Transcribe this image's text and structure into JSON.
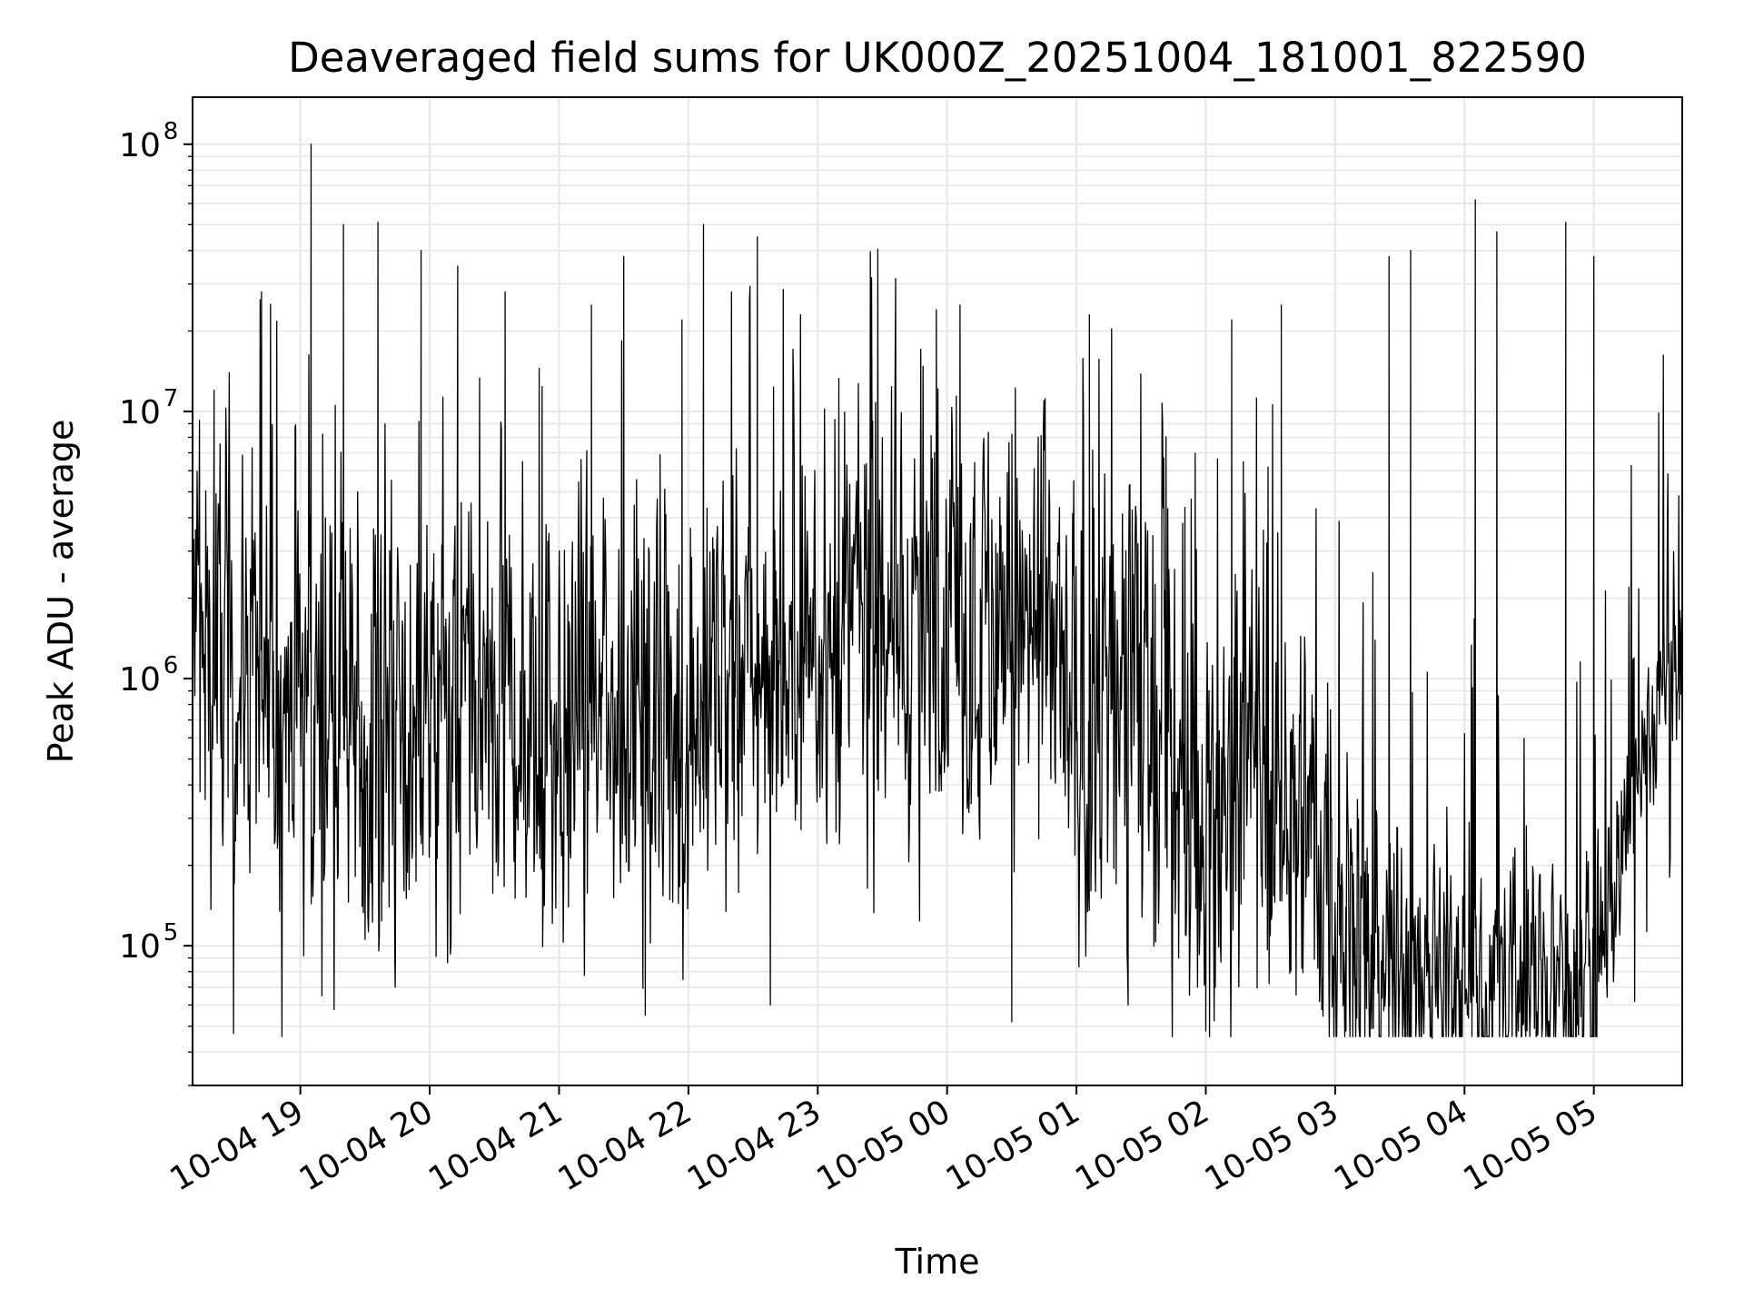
{
  "chart_data": {
    "type": "line",
    "title": "Deaveraged field sums for UK000Z_20251004_181001_822590",
    "xlabel": "Time",
    "ylabel": "Peak ADU - average",
    "y_scale": "log",
    "ylim": [
      30000,
      150000000
    ],
    "xlim": [
      "2025-10-04 18:10",
      "2025-10-05 05:41"
    ],
    "grid": "on (major and minor, light gray)",
    "x_ticks": [
      {
        "label": "10-04 19",
        "value": "2025-10-04 19:00"
      },
      {
        "label": "10-04 20",
        "value": "2025-10-04 20:00"
      },
      {
        "label": "10-04 21",
        "value": "2025-10-04 21:00"
      },
      {
        "label": "10-04 22",
        "value": "2025-10-04 22:00"
      },
      {
        "label": "10-04 23",
        "value": "2025-10-04 23:00"
      },
      {
        "label": "10-05 00",
        "value": "2025-10-05 00:00"
      },
      {
        "label": "10-05 01",
        "value": "2025-10-05 01:00"
      },
      {
        "label": "10-05 02",
        "value": "2025-10-05 02:00"
      },
      {
        "label": "10-05 03",
        "value": "2025-10-05 03:00"
      },
      {
        "label": "10-05 04",
        "value": "2025-10-05 04:00"
      },
      {
        "label": "10-05 05",
        "value": "2025-10-05 05:00"
      }
    ],
    "y_ticks": [
      {
        "base": "10",
        "exp": "5",
        "value": 100000
      },
      {
        "base": "10",
        "exp": "6",
        "value": 1000000
      },
      {
        "base": "10",
        "exp": "7",
        "value": 10000000
      },
      {
        "base": "10",
        "exp": "8",
        "value": 100000000
      }
    ],
    "series": [
      {
        "color": "#000000",
        "baseline": [
          {
            "x": "2025-10-04 18:10",
            "y": 1500000
          },
          {
            "x": "2025-10-04 19:00",
            "y": 800000
          },
          {
            "x": "2025-10-04 20:00",
            "y": 700000
          },
          {
            "x": "2025-10-04 21:00",
            "y": 700000
          },
          {
            "x": "2025-10-04 22:00",
            "y": 750000
          },
          {
            "x": "2025-10-04 23:00",
            "y": 1500000
          },
          {
            "x": "2025-10-05 00:00",
            "y": 1800000
          },
          {
            "x": "2025-10-05 00:45",
            "y": 1500000
          },
          {
            "x": "2025-10-05 01:00",
            "y": 600000
          },
          {
            "x": "2025-10-05 01:30",
            "y": 900000
          },
          {
            "x": "2025-10-05 02:00",
            "y": 200000
          },
          {
            "x": "2025-10-05 02:15",
            "y": 600000
          },
          {
            "x": "2025-10-05 03:00",
            "y": 200000
          },
          {
            "x": "2025-10-05 03:20",
            "y": 80000
          },
          {
            "x": "2025-10-05 04:00",
            "y": 70000
          },
          {
            "x": "2025-10-05 05:00",
            "y": 80000
          },
          {
            "x": "2025-10-05 05:30",
            "y": 800000
          },
          {
            "x": "2025-10-05 05:41",
            "y": 1300000
          }
        ],
        "spikes": [
          {
            "x": "2025-10-04 18:20",
            "y": 12000000
          },
          {
            "x": "2025-10-04 18:42",
            "y": 28000000
          },
          {
            "x": "2025-10-04 19:05",
            "y": 100000000
          },
          {
            "x": "2025-10-04 19:20",
            "y": 50000000
          },
          {
            "x": "2025-10-04 19:36",
            "y": 51000000
          },
          {
            "x": "2025-10-04 19:56",
            "y": 40000000
          },
          {
            "x": "2025-10-04 20:13",
            "y": 35000000
          },
          {
            "x": "2025-10-04 20:35",
            "y": 28000000
          },
          {
            "x": "2025-10-04 21:15",
            "y": 25000000
          },
          {
            "x": "2025-10-04 21:30",
            "y": 38000000
          },
          {
            "x": "2025-10-04 21:57",
            "y": 22000000
          },
          {
            "x": "2025-10-04 22:07",
            "y": 50000000
          },
          {
            "x": "2025-10-04 22:20",
            "y": 28000000
          },
          {
            "x": "2025-10-04 22:32",
            "y": 45000000
          },
          {
            "x": "2025-10-04 22:52",
            "y": 23000000
          },
          {
            "x": "2025-10-04 23:55",
            "y": 24000000
          },
          {
            "x": "2025-10-05 00:06",
            "y": 25000000
          },
          {
            "x": "2025-10-05 01:06",
            "y": 23000000
          },
          {
            "x": "2025-10-05 02:12",
            "y": 22000000
          },
          {
            "x": "2025-10-05 02:35",
            "y": 25000000
          },
          {
            "x": "2025-10-05 03:25",
            "y": 38000000
          },
          {
            "x": "2025-10-05 03:35",
            "y": 40000000
          },
          {
            "x": "2025-10-05 04:05",
            "y": 62000000
          },
          {
            "x": "2025-10-05 04:15",
            "y": 47000000
          },
          {
            "x": "2025-10-05 04:47",
            "y": 51000000
          },
          {
            "x": "2025-10-05 05:00",
            "y": 38000000
          }
        ],
        "dips": [
          {
            "x": "2025-10-04 18:29",
            "y": 47000
          },
          {
            "x": "2025-10-04 19:10",
            "y": 65000
          },
          {
            "x": "2025-10-04 19:44",
            "y": 70000
          },
          {
            "x": "2025-10-04 21:40",
            "y": 55000
          },
          {
            "x": "2025-10-04 22:38",
            "y": 60000
          },
          {
            "x": "2025-10-05 00:30",
            "y": 52000
          },
          {
            "x": "2025-10-05 01:24",
            "y": 60000
          },
          {
            "x": "2025-10-05 02:00",
            "y": 48000
          },
          {
            "x": "2025-10-05 03:05",
            "y": 48000
          },
          {
            "x": "2025-10-05 03:45",
            "y": 45000
          },
          {
            "x": "2025-10-05 04:25",
            "y": 48000
          }
        ]
      }
    ]
  }
}
